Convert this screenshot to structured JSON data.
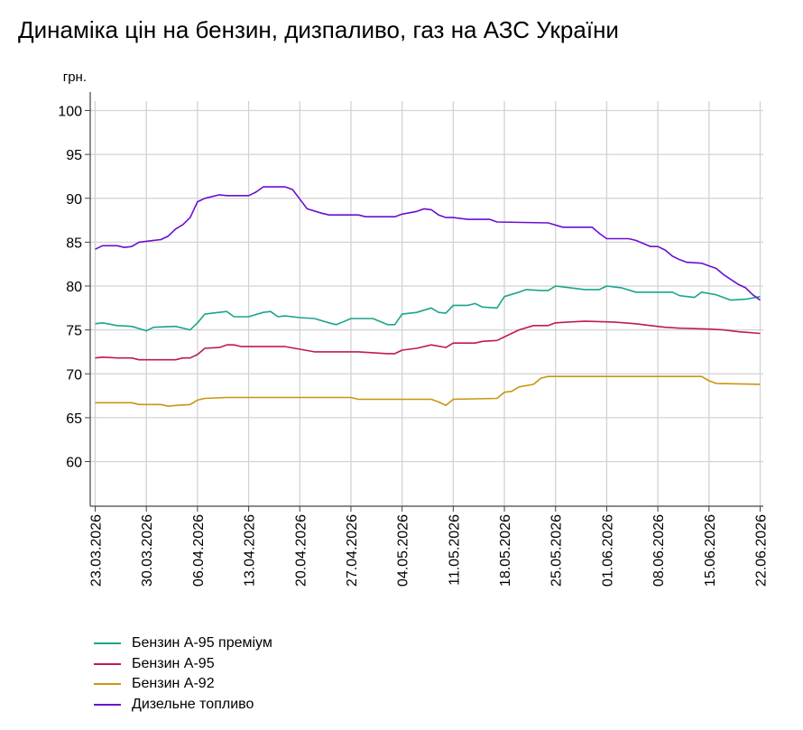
{
  "title": "Динаміка цін на бензин, дизпаливо, газ на АЗС України",
  "chart_data": {
    "type": "line",
    "title": "Динаміка цін на бензин, дизпаливо, газ на АЗС України",
    "ylabel": "грн.",
    "xlabel": "",
    "ylim": [
      55,
      100
    ],
    "yticks": [
      60,
      65,
      70,
      75,
      80,
      85,
      90,
      95,
      100
    ],
    "grid": true,
    "legend_position": "bottom-left",
    "x_start": "23.03.2026",
    "x_end": "22.06.2026",
    "xtick_labels": [
      "23.03.2026",
      "30.03.2026",
      "06.04.2026",
      "13.04.2026",
      "20.04.2026",
      "27.04.2026",
      "04.05.2026",
      "11.05.2026",
      "18.05.2026",
      "25.05.2026",
      "01.06.2026",
      "08.06.2026",
      "15.06.2026",
      "22.06.2026"
    ],
    "series": [
      {
        "name": "Бензин А-95 преміум",
        "color": "#1aa58a",
        "points": [
          [
            "23.03.2026",
            75.7
          ],
          [
            "24.03.2026",
            75.8
          ],
          [
            "26.03.2026",
            75.5
          ],
          [
            "28.03.2026",
            75.4
          ],
          [
            "30.03.2026",
            74.9
          ],
          [
            "31.03.2026",
            75.3
          ],
          [
            "03.04.2026",
            75.4
          ],
          [
            "05.04.2026",
            75.0
          ],
          [
            "06.04.2026",
            75.8
          ],
          [
            "07.04.2026",
            76.8
          ],
          [
            "08.04.2026",
            76.9
          ],
          [
            "10.04.2026",
            77.1
          ],
          [
            "11.04.2026",
            76.5
          ],
          [
            "13.04.2026",
            76.5
          ],
          [
            "15.04.2026",
            77.0
          ],
          [
            "16.04.2026",
            77.1
          ],
          [
            "17.04.2026",
            76.5
          ],
          [
            "18.04.2026",
            76.6
          ],
          [
            "20.04.2026",
            76.4
          ],
          [
            "22.04.2026",
            76.3
          ],
          [
            "24.04.2026",
            75.8
          ],
          [
            "25.04.2026",
            75.6
          ],
          [
            "27.04.2026",
            76.3
          ],
          [
            "30.04.2026",
            76.3
          ],
          [
            "02.05.2026",
            75.6
          ],
          [
            "03.05.2026",
            75.6
          ],
          [
            "04.05.2026",
            76.8
          ],
          [
            "06.05.2026",
            77.0
          ],
          [
            "08.05.2026",
            77.5
          ],
          [
            "09.05.2026",
            77.0
          ],
          [
            "10.05.2026",
            76.9
          ],
          [
            "11.05.2026",
            77.8
          ],
          [
            "13.05.2026",
            77.8
          ],
          [
            "14.05.2026",
            78.0
          ],
          [
            "15.05.2026",
            77.6
          ],
          [
            "17.05.2026",
            77.5
          ],
          [
            "18.05.2026",
            78.8
          ],
          [
            "20.05.2026",
            79.3
          ],
          [
            "21.05.2026",
            79.6
          ],
          [
            "23.05.2026",
            79.5
          ],
          [
            "24.05.2026",
            79.5
          ],
          [
            "25.05.2026",
            80.0
          ],
          [
            "27.05.2026",
            79.8
          ],
          [
            "29.05.2026",
            79.6
          ],
          [
            "31.05.2026",
            79.6
          ],
          [
            "01.06.2026",
            80.0
          ],
          [
            "03.06.2026",
            79.8
          ],
          [
            "05.06.2026",
            79.3
          ],
          [
            "08.06.2026",
            79.3
          ],
          [
            "10.06.2026",
            79.3
          ],
          [
            "11.06.2026",
            78.9
          ],
          [
            "13.06.2026",
            78.7
          ],
          [
            "14.06.2026",
            79.3
          ],
          [
            "16.06.2026",
            79.0
          ],
          [
            "18.06.2026",
            78.4
          ],
          [
            "20.06.2026",
            78.5
          ],
          [
            "22.06.2026",
            78.8
          ]
        ]
      },
      {
        "name": "Бензин А-95",
        "color": "#c0185a",
        "points": [
          [
            "23.03.2026",
            71.8
          ],
          [
            "24.03.2026",
            71.9
          ],
          [
            "26.03.2026",
            71.8
          ],
          [
            "28.03.2026",
            71.8
          ],
          [
            "29.03.2026",
            71.6
          ],
          [
            "03.04.2026",
            71.6
          ],
          [
            "04.04.2026",
            71.8
          ],
          [
            "05.04.2026",
            71.8
          ],
          [
            "06.04.2026",
            72.2
          ],
          [
            "07.04.2026",
            72.9
          ],
          [
            "09.04.2026",
            73.0
          ],
          [
            "10.04.2026",
            73.3
          ],
          [
            "11.04.2026",
            73.3
          ],
          [
            "12.04.2026",
            73.1
          ],
          [
            "18.04.2026",
            73.1
          ],
          [
            "20.04.2026",
            72.8
          ],
          [
            "22.04.2026",
            72.5
          ],
          [
            "28.04.2026",
            72.5
          ],
          [
            "02.05.2026",
            72.3
          ],
          [
            "03.05.2026",
            72.3
          ],
          [
            "04.05.2026",
            72.7
          ],
          [
            "06.05.2026",
            72.9
          ],
          [
            "08.05.2026",
            73.3
          ],
          [
            "10.05.2026",
            73.0
          ],
          [
            "11.05.2026",
            73.5
          ],
          [
            "14.05.2026",
            73.5
          ],
          [
            "15.05.2026",
            73.7
          ],
          [
            "17.05.2026",
            73.8
          ],
          [
            "18.05.2026",
            74.2
          ],
          [
            "20.05.2026",
            75.0
          ],
          [
            "22.05.2026",
            75.5
          ],
          [
            "24.05.2026",
            75.5
          ],
          [
            "25.05.2026",
            75.8
          ],
          [
            "29.05.2026",
            76.0
          ],
          [
            "02.06.2026",
            75.9
          ],
          [
            "05.06.2026",
            75.7
          ],
          [
            "07.06.2026",
            75.5
          ],
          [
            "09.06.2026",
            75.3
          ],
          [
            "11.06.2026",
            75.2
          ],
          [
            "15.06.2026",
            75.1
          ],
          [
            "17.06.2026",
            75.0
          ],
          [
            "19.06.2026",
            74.8
          ],
          [
            "22.06.2026",
            74.6
          ]
        ]
      },
      {
        "name": "Бензин А-92",
        "color": "#c8960f",
        "points": [
          [
            "23.03.2026",
            66.7
          ],
          [
            "28.03.2026",
            66.7
          ],
          [
            "29.03.2026",
            66.5
          ],
          [
            "01.04.2026",
            66.5
          ],
          [
            "02.04.2026",
            66.3
          ],
          [
            "03.04.2026",
            66.4
          ],
          [
            "05.04.2026",
            66.5
          ],
          [
            "06.04.2026",
            67.0
          ],
          [
            "07.04.2026",
            67.2
          ],
          [
            "10.04.2026",
            67.3
          ],
          [
            "27.04.2026",
            67.3
          ],
          [
            "28.04.2026",
            67.1
          ],
          [
            "08.05.2026",
            67.1
          ],
          [
            "09.05.2026",
            66.8
          ],
          [
            "10.05.2026",
            66.4
          ],
          [
            "11.05.2026",
            67.1
          ],
          [
            "17.05.2026",
            67.2
          ],
          [
            "18.05.2026",
            67.9
          ],
          [
            "19.05.2026",
            68.0
          ],
          [
            "20.05.2026",
            68.5
          ],
          [
            "22.05.2026",
            68.8
          ],
          [
            "23.05.2026",
            69.5
          ],
          [
            "24.05.2026",
            69.7
          ],
          [
            "14.06.2026",
            69.7
          ],
          [
            "15.06.2026",
            69.2
          ],
          [
            "16.06.2026",
            68.9
          ],
          [
            "22.06.2026",
            68.8
          ]
        ]
      },
      {
        "name": "Дизельне топливо",
        "color": "#6a0fd0",
        "points": [
          [
            "23.03.2026",
            84.2
          ],
          [
            "24.03.2026",
            84.6
          ],
          [
            "26.03.2026",
            84.6
          ],
          [
            "27.03.2026",
            84.4
          ],
          [
            "28.03.2026",
            84.5
          ],
          [
            "29.03.2026",
            85.0
          ],
          [
            "31.03.2026",
            85.2
          ],
          [
            "01.04.2026",
            85.3
          ],
          [
            "02.04.2026",
            85.7
          ],
          [
            "03.04.2026",
            86.5
          ],
          [
            "04.04.2026",
            87.0
          ],
          [
            "05.04.2026",
            87.8
          ],
          [
            "06.04.2026",
            89.6
          ],
          [
            "07.04.2026",
            90.0
          ],
          [
            "09.04.2026",
            90.4
          ],
          [
            "10.04.2026",
            90.3
          ],
          [
            "13.04.2026",
            90.3
          ],
          [
            "14.04.2026",
            90.7
          ],
          [
            "15.04.2026",
            91.3
          ],
          [
            "18.04.2026",
            91.3
          ],
          [
            "19.04.2026",
            91.0
          ],
          [
            "20.04.2026",
            89.9
          ],
          [
            "21.04.2026",
            88.8
          ],
          [
            "23.04.2026",
            88.3
          ],
          [
            "24.04.2026",
            88.1
          ],
          [
            "28.04.2026",
            88.1
          ],
          [
            "29.04.2026",
            87.9
          ],
          [
            "03.05.2026",
            87.9
          ],
          [
            "04.05.2026",
            88.2
          ],
          [
            "06.05.2026",
            88.5
          ],
          [
            "07.05.2026",
            88.8
          ],
          [
            "08.05.2026",
            88.7
          ],
          [
            "09.05.2026",
            88.1
          ],
          [
            "10.05.2026",
            87.8
          ],
          [
            "11.05.2026",
            87.8
          ],
          [
            "13.05.2026",
            87.6
          ],
          [
            "16.05.2026",
            87.6
          ],
          [
            "17.05.2026",
            87.3
          ],
          [
            "24.05.2026",
            87.2
          ],
          [
            "26.05.2026",
            86.7
          ],
          [
            "30.05.2026",
            86.7
          ],
          [
            "31.05.2026",
            86.0
          ],
          [
            "01.06.2026",
            85.4
          ],
          [
            "04.06.2026",
            85.4
          ],
          [
            "05.06.2026",
            85.2
          ],
          [
            "07.06.2026",
            84.5
          ],
          [
            "08.06.2026",
            84.5
          ],
          [
            "09.06.2026",
            84.1
          ],
          [
            "10.06.2026",
            83.4
          ],
          [
            "11.06.2026",
            83.0
          ],
          [
            "12.06.2026",
            82.7
          ],
          [
            "14.06.2026",
            82.6
          ],
          [
            "16.06.2026",
            82.0
          ],
          [
            "17.06.2026",
            81.3
          ],
          [
            "19.06.2026",
            80.2
          ],
          [
            "20.06.2026",
            79.8
          ],
          [
            "21.06.2026",
            79.0
          ],
          [
            "22.06.2026",
            78.4
          ]
        ]
      }
    ]
  }
}
